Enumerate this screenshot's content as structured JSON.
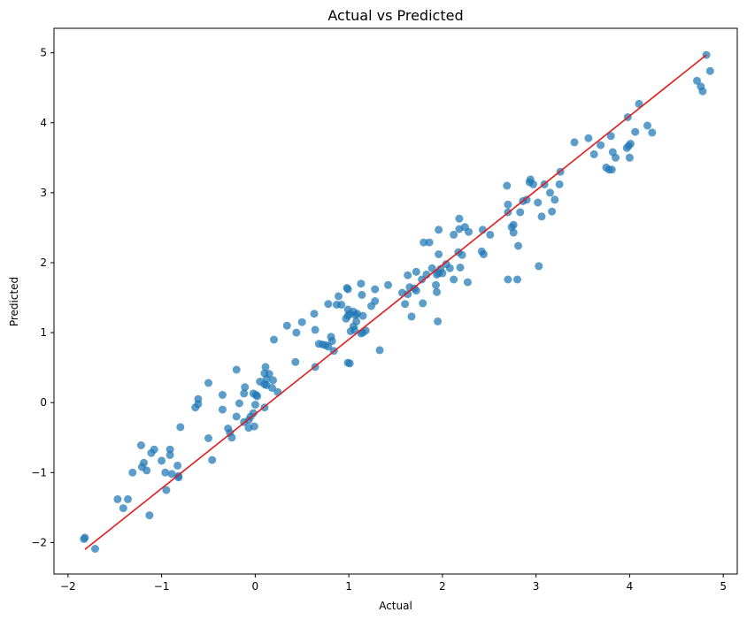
{
  "chart_data": {
    "type": "scatter",
    "title": "Actual vs Predicted",
    "xlabel": "Actual",
    "ylabel": "Predicted",
    "xlim": [
      -2.15,
      5.15
    ],
    "ylim": [
      -2.45,
      5.35
    ],
    "xticks": [
      -2,
      -1,
      0,
      1,
      2,
      3,
      4,
      5
    ],
    "yticks": [
      -2,
      -1,
      0,
      1,
      2,
      3,
      4,
      5
    ],
    "xtick_labels": [
      "−2",
      "−1",
      "0",
      "1",
      "2",
      "3",
      "4",
      "5"
    ],
    "ytick_labels": [
      "−2",
      "−1",
      "0",
      "1",
      "2",
      "3",
      "4",
      "5"
    ],
    "grid": false,
    "point_color": "#1f77b4",
    "line_color": "#e31a1c",
    "reference_line": {
      "x": [
        -1.82,
        4.82
      ],
      "y": [
        -2.1,
        4.97
      ]
    },
    "points": [
      [
        -1.82,
        -1.93
      ],
      [
        -1.83,
        -1.95
      ],
      [
        -1.71,
        -2.09
      ],
      [
        -1.47,
        -1.38
      ],
      [
        -1.41,
        -1.51
      ],
      [
        -1.36,
        -1.38
      ],
      [
        -1.31,
        -1.0
      ],
      [
        -1.22,
        -0.61
      ],
      [
        -1.21,
        -0.92
      ],
      [
        -1.19,
        -0.86
      ],
      [
        -1.16,
        -0.97
      ],
      [
        -1.13,
        -1.61
      ],
      [
        -1.11,
        -0.72
      ],
      [
        -1.08,
        -0.67
      ],
      [
        -1.0,
        -0.83
      ],
      [
        -0.96,
        -1.0
      ],
      [
        -0.95,
        -1.25
      ],
      [
        -0.91,
        -0.67
      ],
      [
        -0.91,
        -0.75
      ],
      [
        -0.89,
        -1.02
      ],
      [
        -0.83,
        -0.9
      ],
      [
        -0.82,
        -1.05
      ],
      [
        -0.82,
        -1.07
      ],
      [
        -0.8,
        -0.35
      ],
      [
        -0.64,
        -0.07
      ],
      [
        -0.61,
        0.05
      ],
      [
        -0.61,
        -0.02
      ],
      [
        -0.5,
        0.28
      ],
      [
        -0.5,
        -0.51
      ],
      [
        -0.46,
        -0.82
      ],
      [
        -0.35,
        0.11
      ],
      [
        -0.35,
        -0.1
      ],
      [
        -0.29,
        -0.37
      ],
      [
        -0.27,
        -0.43
      ],
      [
        -0.25,
        -0.5
      ],
      [
        -0.2,
        0.47
      ],
      [
        -0.2,
        -0.2
      ],
      [
        -0.17,
        -0.01
      ],
      [
        -0.12,
        0.13
      ],
      [
        -0.11,
        0.22
      ],
      [
        -0.12,
        -0.28
      ],
      [
        -0.07,
        -0.36
      ],
      [
        -0.07,
        -0.25
      ],
      [
        -0.05,
        -0.2
      ],
      [
        -0.02,
        0.13
      ],
      [
        -0.02,
        -0.15
      ],
      [
        -0.01,
        -0.34
      ],
      [
        0.01,
        0.11
      ],
      [
        0.02,
        0.09
      ],
      [
        0.0,
        -0.03
      ],
      [
        0.05,
        0.3
      ],
      [
        0.1,
        0.42
      ],
      [
        0.11,
        0.51
      ],
      [
        0.1,
        0.26
      ],
      [
        0.12,
        0.34
      ],
      [
        0.12,
        0.25
      ],
      [
        0.1,
        -0.07
      ],
      [
        0.15,
        0.41
      ],
      [
        0.19,
        0.32
      ],
      [
        0.2,
        0.9
      ],
      [
        0.18,
        0.21
      ],
      [
        0.24,
        0.15
      ],
      [
        0.34,
        1.1
      ],
      [
        0.43,
        0.58
      ],
      [
        0.44,
        1.0
      ],
      [
        0.5,
        1.15
      ],
      [
        0.63,
        1.27
      ],
      [
        0.64,
        1.04
      ],
      [
        0.64,
        0.51
      ],
      [
        0.68,
        0.84
      ],
      [
        0.72,
        0.83
      ],
      [
        0.75,
        0.82
      ],
      [
        0.78,
        0.8
      ],
      [
        0.78,
        1.41
      ],
      [
        0.81,
        0.94
      ],
      [
        0.82,
        0.88
      ],
      [
        0.84,
        0.74
      ],
      [
        0.87,
        1.4
      ],
      [
        0.89,
        1.52
      ],
      [
        0.92,
        1.4
      ],
      [
        0.97,
        1.2
      ],
      [
        0.98,
        1.64
      ],
      [
        0.99,
        1.62
      ],
      [
        0.99,
        1.33
      ],
      [
        0.99,
        1.24
      ],
      [
        0.99,
        0.57
      ],
      [
        1.01,
        1.27
      ],
      [
        1.01,
        0.56
      ],
      [
        1.02,
        1.02
      ],
      [
        1.05,
        1.3
      ],
      [
        1.05,
        1.09
      ],
      [
        1.06,
        1.04
      ],
      [
        1.07,
        1.25
      ],
      [
        1.08,
        1.16
      ],
      [
        1.09,
        1.27
      ],
      [
        1.13,
        0.99
      ],
      [
        1.13,
        1.7
      ],
      [
        1.14,
        1.54
      ],
      [
        1.15,
        1.24
      ],
      [
        1.15,
        1.0
      ],
      [
        1.18,
        1.03
      ],
      [
        1.24,
        1.38
      ],
      [
        1.28,
        1.45
      ],
      [
        1.28,
        1.62
      ],
      [
        1.33,
        0.75
      ],
      [
        1.42,
        1.68
      ],
      [
        1.57,
        1.57
      ],
      [
        1.6,
        1.41
      ],
      [
        1.63,
        1.55
      ],
      [
        1.63,
        1.82
      ],
      [
        1.67,
        1.23
      ],
      [
        1.65,
        1.65
      ],
      [
        1.7,
        1.63
      ],
      [
        1.72,
        1.87
      ],
      [
        1.72,
        1.6
      ],
      [
        1.78,
        1.76
      ],
      [
        1.79,
        1.42
      ],
      [
        1.8,
        2.29
      ],
      [
        1.83,
        1.83
      ],
      [
        1.86,
        2.29
      ],
      [
        1.89,
        1.92
      ],
      [
        1.93,
        1.68
      ],
      [
        1.94,
        1.83
      ],
      [
        1.94,
        1.58
      ],
      [
        1.95,
        1.16
      ],
      [
        1.96,
        2.12
      ],
      [
        1.96,
        1.85
      ],
      [
        1.96,
        2.47
      ],
      [
        1.98,
        1.91
      ],
      [
        2.0,
        1.85
      ],
      [
        2.04,
        1.98
      ],
      [
        2.08,
        1.92
      ],
      [
        2.12,
        1.76
      ],
      [
        2.12,
        2.4
      ],
      [
        2.17,
        2.15
      ],
      [
        2.18,
        2.48
      ],
      [
        2.18,
        2.63
      ],
      [
        2.19,
        1.93
      ],
      [
        2.21,
        2.11
      ],
      [
        2.24,
        2.51
      ],
      [
        2.27,
        1.72
      ],
      [
        2.28,
        2.44
      ],
      [
        2.42,
        2.16
      ],
      [
        2.43,
        2.47
      ],
      [
        2.44,
        2.12
      ],
      [
        2.51,
        2.4
      ],
      [
        2.69,
        3.1
      ],
      [
        2.7,
        2.83
      ],
      [
        2.7,
        2.72
      ],
      [
        2.7,
        1.76
      ],
      [
        2.74,
        2.51
      ],
      [
        2.76,
        2.54
      ],
      [
        2.76,
        2.43
      ],
      [
        2.8,
        1.76
      ],
      [
        2.81,
        2.24
      ],
      [
        2.83,
        2.72
      ],
      [
        2.86,
        2.88
      ],
      [
        2.9,
        2.9
      ],
      [
        2.93,
        3.15
      ],
      [
        2.94,
        3.19
      ],
      [
        2.97,
        3.12
      ],
      [
        3.02,
        2.86
      ],
      [
        3.03,
        1.95
      ],
      [
        3.06,
        2.66
      ],
      [
        3.09,
        3.12
      ],
      [
        3.15,
        3.0
      ],
      [
        3.17,
        2.73
      ],
      [
        3.2,
        2.9
      ],
      [
        3.25,
        3.12
      ],
      [
        3.26,
        3.3
      ],
      [
        3.41,
        3.72
      ],
      [
        3.56,
        3.78
      ],
      [
        3.62,
        3.55
      ],
      [
        3.69,
        3.68
      ],
      [
        3.75,
        3.36
      ],
      [
        3.78,
        3.33
      ],
      [
        3.8,
        3.81
      ],
      [
        3.81,
        3.33
      ],
      [
        3.82,
        3.58
      ],
      [
        3.85,
        3.5
      ],
      [
        3.97,
        3.64
      ],
      [
        3.98,
        4.08
      ],
      [
        3.99,
        3.67
      ],
      [
        4.0,
        3.5
      ],
      [
        4.01,
        3.7
      ],
      [
        4.06,
        3.87
      ],
      [
        4.1,
        4.27
      ],
      [
        4.19,
        3.96
      ],
      [
        4.24,
        3.86
      ],
      [
        4.72,
        4.6
      ],
      [
        4.76,
        4.52
      ],
      [
        4.78,
        4.45
      ],
      [
        4.82,
        4.97
      ],
      [
        4.86,
        4.74
      ]
    ]
  }
}
